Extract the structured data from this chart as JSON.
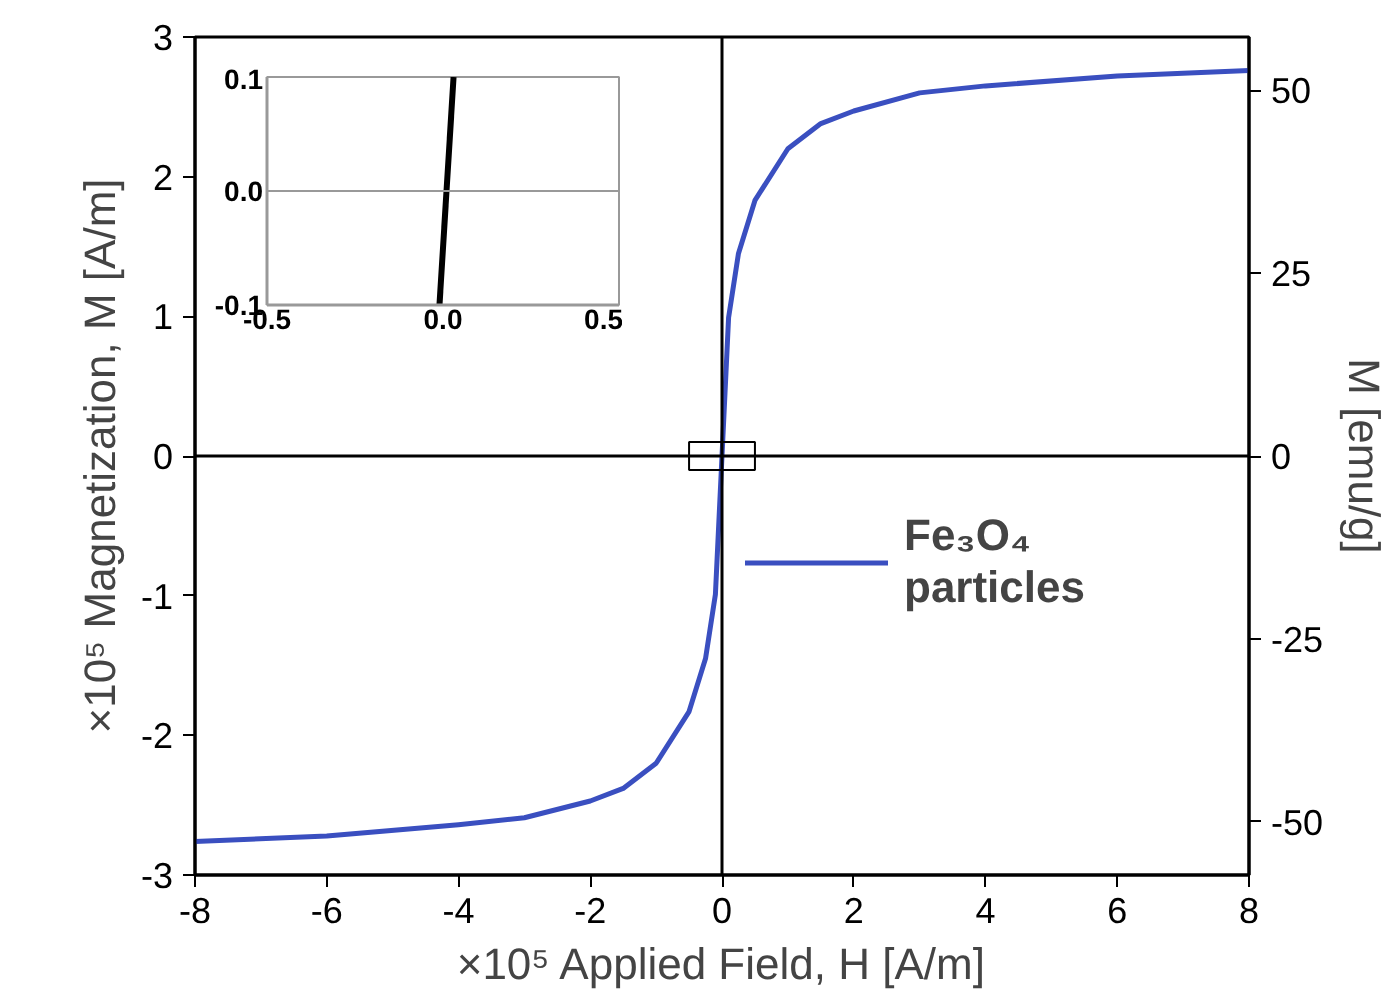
{
  "chart_data": [
    {
      "type": "line",
      "xlabel": "×10⁵ Applied Field, H [A/m]",
      "ylabel": "×10⁵ Magnetization, M [A/m]",
      "y2label": "M [emu/g]",
      "series": [
        {
          "name": "Fe₃O₄\nparticles",
          "color": "#3a4fc0",
          "x": [
            -8,
            -6,
            -4,
            -3,
            -2,
            -1.5,
            -1,
            -0.5,
            -0.25,
            -0.1,
            0,
            0.1,
            0.25,
            0.5,
            1,
            1.5,
            2,
            3,
            4,
            6,
            8
          ],
          "values": [
            -2.76,
            -2.72,
            -2.64,
            -2.59,
            -2.47,
            -2.38,
            -2.2,
            -1.83,
            -1.45,
            -0.99,
            0,
            0.99,
            1.45,
            1.83,
            2.2,
            2.38,
            2.47,
            2.6,
            2.65,
            2.72,
            2.76
          ]
        }
      ],
      "xlim": [
        -8,
        8
      ],
      "xticks": [
        -8,
        -6,
        -4,
        -2,
        0,
        2,
        4,
        6,
        8
      ],
      "ylim": [
        -3,
        3
      ],
      "yticks": [
        -3,
        -2,
        -1,
        0,
        1,
        2,
        3
      ],
      "y2lim": [
        -57.3,
        57.3
      ],
      "y2ticks": [
        -50,
        -25,
        0,
        25,
        50
      ],
      "ref_lines": [
        {
          "axis": "x",
          "value": 0,
          "color": "#000000"
        },
        {
          "axis": "y",
          "value": 0,
          "color": "#000000"
        }
      ],
      "grid": false,
      "legend": "right",
      "marker": "none",
      "line_style": "solid"
    },
    {
      "type": "line",
      "series": [
        {
          "color": "#000000",
          "x": [
            -0.01,
            0.03
          ],
          "values": [
            -0.1,
            0.1
          ]
        }
      ],
      "xlim": [
        -0.5,
        0.5
      ],
      "xticks": [
        -0.5,
        {
          "value": 0,
          "label": "0.0"
        },
        0.5
      ],
      "ylim": [
        -0.1,
        0.1
      ],
      "yticks": [
        -0.1,
        {
          "value": 0,
          "label": "0.0"
        },
        0.1
      ],
      "ref_lines": [
        {
          "axis": "y",
          "value": 0,
          "color": "#999999"
        }
      ],
      "grid": false,
      "legend": false,
      "marker": "none",
      "line_style": "solid"
    }
  ]
}
